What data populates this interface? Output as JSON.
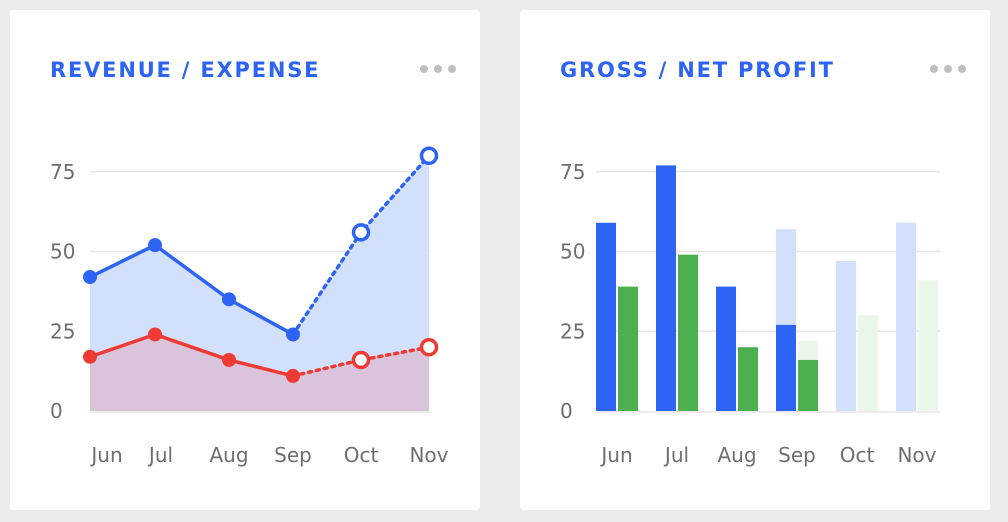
{
  "cards": [
    {
      "title": "REVENUE / EXPENSE",
      "menu_icon": "more-horizontal-icon",
      "chart_data": {
        "type": "line",
        "title": "REVENUE / EXPENSE",
        "categories": [
          "Jun",
          "Jul",
          "Aug",
          "Sep",
          "Oct",
          "Nov"
        ],
        "yticks": [
          "0",
          "25",
          "50",
          "75"
        ],
        "ylim": [
          0,
          100
        ],
        "grid": true,
        "projected_from_index": 3,
        "series": [
          {
            "values": [
              42,
              52,
              35,
              24,
              56,
              80
            ],
            "color": "#2d64f5",
            "fill": "#d3e0fc",
            "style": "solid, dotted + hollow markers for projected"
          },
          {
            "values": [
              17,
              24,
              16,
              11,
              16,
              20
            ],
            "color": "#ef3b33",
            "fill": "#d9c2da",
            "style": "solid, dotted + hollow markers for projected"
          }
        ]
      }
    },
    {
      "title": "GROSS / NET PROFIT",
      "menu_icon": "more-horizontal-icon",
      "chart_data": {
        "type": "bar",
        "title": "GROSS / NET PROFIT",
        "categories": [
          "Jun",
          "Jul",
          "Aug",
          "Sep",
          "Oct",
          "Nov"
        ],
        "yticks": [
          "0",
          "25",
          "50",
          "75"
        ],
        "ylim": [
          0,
          100
        ],
        "grid": true,
        "series": [
          {
            "values": [
              59,
              77,
              39,
              57,
              47,
              59
            ],
            "color": "#2d64f5",
            "projected_color": "#d3e0fc",
            "actual_part": [
              59,
              77,
              39,
              27,
              0,
              0
            ]
          },
          {
            "values": [
              39,
              49,
              20,
              22,
              30,
              41
            ],
            "color": "#4caf50",
            "projected_color": "#eaf6ea",
            "actual_part": [
              39,
              49,
              20,
              16,
              0,
              0
            ]
          }
        ]
      }
    }
  ]
}
